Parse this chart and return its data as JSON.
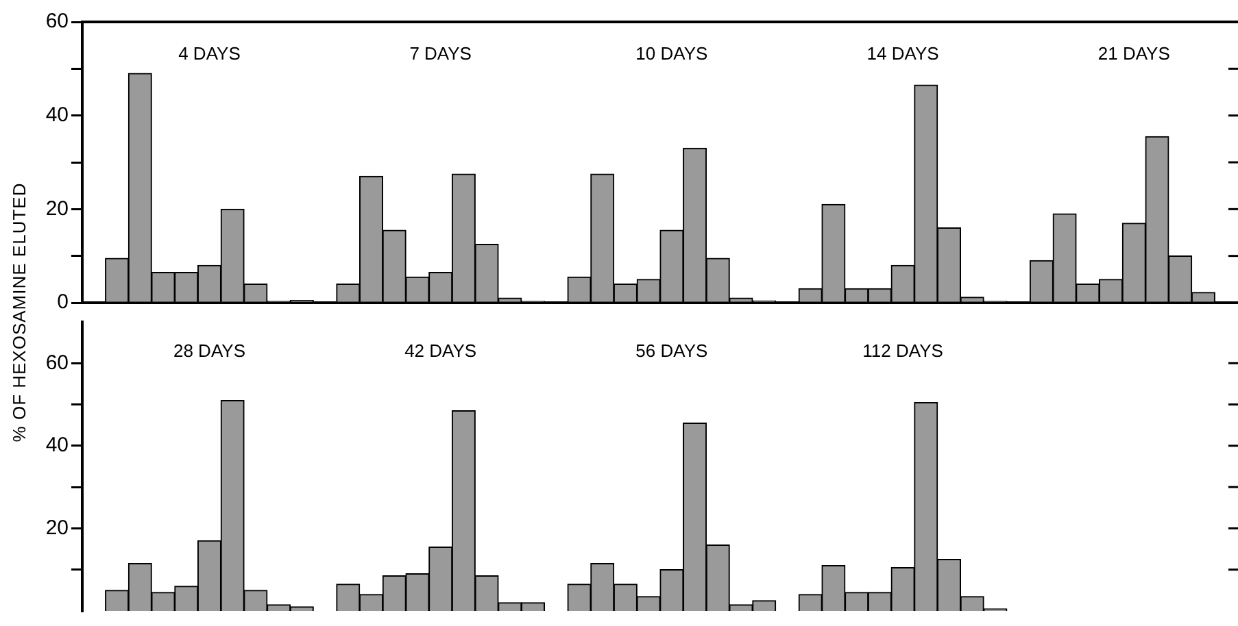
{
  "chart_data": [
    {
      "type": "bar",
      "ylabel": "% OF HEXOSAMINE ELUTED",
      "color": "#9a9a9a",
      "grid": false,
      "legend": false,
      "tick_labels": "y",
      "ylim": [
        0,
        60
      ],
      "yticks": [
        0,
        {
          "value": 10,
          "label": null
        },
        20,
        {
          "value": 30,
          "label": null
        },
        40,
        {
          "value": 50,
          "label": null
        },
        60
      ],
      "annotations": [
        "4 DAYS",
        "7 DAYS",
        "10 DAYS",
        "14 DAYS",
        "21 DAYS"
      ],
      "categories": [
        null,
        null,
        null,
        null,
        null,
        null,
        null,
        null,
        null,
        null,
        null,
        null,
        null,
        null,
        null,
        null,
        null,
        null,
        null,
        null,
        null,
        null,
        null,
        null,
        null,
        null,
        null,
        null,
        null,
        null,
        null,
        null,
        null,
        null,
        null,
        null,
        null,
        null,
        null,
        null,
        null,
        null,
        null,
        null,
        null,
        null,
        null,
        null,
        null,
        null
      ],
      "values": [
        null,
        9.5,
        49,
        6.5,
        6.5,
        8,
        20,
        4,
        0.3,
        0.5,
        null,
        4,
        27,
        15.5,
        5.5,
        6.5,
        27.5,
        12.5,
        1,
        0.3,
        null,
        5.5,
        27.5,
        4,
        5,
        15.5,
        33,
        9.5,
        1,
        0.4,
        null,
        3,
        21,
        3,
        3,
        8,
        46.5,
        16,
        1.2,
        0.3,
        null,
        9,
        19,
        4,
        5,
        17,
        35.5,
        10,
        2.2,
        null
      ]
    },
    {
      "type": "bar",
      "color": "#9a9a9a",
      "grid": false,
      "legend": false,
      "tick_labels": "y",
      "ylim": [
        0,
        70
      ],
      "yticks": [
        {
          "value": 10,
          "label": null
        },
        20,
        {
          "value": 30,
          "label": null
        },
        40,
        {
          "value": 50,
          "label": null
        },
        60
      ],
      "annotations": [
        "28 DAYS",
        "42 DAYS",
        "56 DAYS",
        "112 DAYS"
      ],
      "categories": [
        null,
        null,
        null,
        null,
        null,
        null,
        null,
        null,
        null,
        null,
        null,
        null,
        null,
        null,
        null,
        null,
        null,
        null,
        null,
        null,
        null,
        null,
        null,
        null,
        null,
        null,
        null,
        null,
        null,
        null,
        null,
        null,
        null,
        null,
        null,
        null,
        null,
        null,
        null,
        null,
        null,
        null,
        null,
        null,
        null,
        null,
        null,
        null,
        null,
        null
      ],
      "values": [
        null,
        5,
        11.5,
        4.5,
        6,
        17,
        51,
        5,
        1.5,
        1,
        null,
        6.5,
        4,
        8.5,
        9,
        15.5,
        48.5,
        8.5,
        2,
        2,
        null,
        6.5,
        11.5,
        6.5,
        3.5,
        10,
        45.5,
        16,
        1.5,
        2.5,
        null,
        4,
        11,
        4.5,
        4.5,
        10.5,
        50.5,
        12.5,
        3.5,
        0.5,
        null,
        null,
        null,
        null,
        null,
        null,
        null,
        null,
        null,
        null
      ]
    }
  ]
}
